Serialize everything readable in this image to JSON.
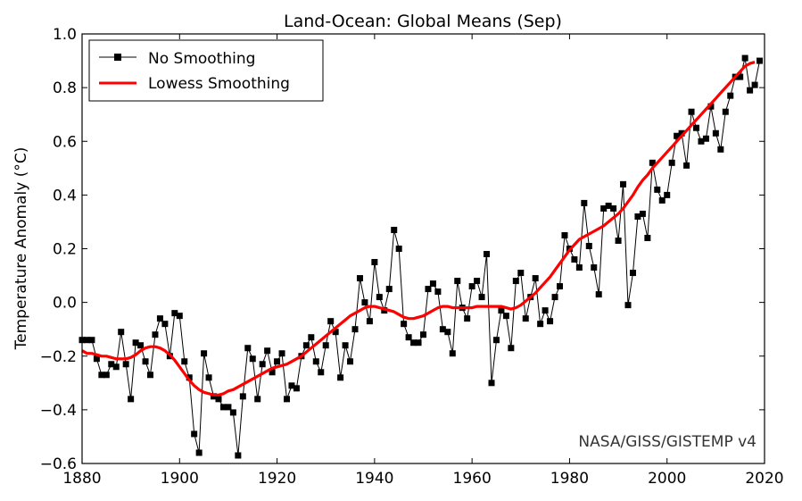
{
  "chart_data": {
    "type": "line",
    "title": "Land-Ocean: Global Means (Sep)",
    "xlabel": "",
    "ylabel": "Temperature Anomaly (°C)",
    "xlim": [
      1880,
      2020
    ],
    "ylim": [
      -0.6,
      1.0
    ],
    "xticks": [
      "1880",
      "1900",
      "1920",
      "1940",
      "1960",
      "1980",
      "2000",
      "2020"
    ],
    "yticks": [
      "−0.6",
      "−0.4",
      "−0.2",
      "0.0",
      "0.2",
      "0.4",
      "0.6",
      "0.8",
      "1.0"
    ],
    "grid": false,
    "legend_position": "top-left",
    "annotation": "NASA/GISS/GISTEMP v4",
    "series": [
      {
        "name": "No Smoothing",
        "color": "#000000",
        "marker": "square",
        "x_start": 1880,
        "values": [
          -0.14,
          -0.14,
          -0.14,
          -0.21,
          -0.27,
          -0.27,
          -0.23,
          -0.24,
          -0.11,
          -0.23,
          -0.36,
          -0.15,
          -0.16,
          -0.22,
          -0.27,
          -0.12,
          -0.06,
          -0.08,
          -0.2,
          -0.04,
          -0.05,
          -0.22,
          -0.28,
          -0.49,
          -0.56,
          -0.19,
          -0.28,
          -0.35,
          -0.36,
          -0.39,
          -0.39,
          -0.41,
          -0.57,
          -0.35,
          -0.17,
          -0.21,
          -0.36,
          -0.23,
          -0.18,
          -0.26,
          -0.22,
          -0.19,
          -0.36,
          -0.31,
          -0.32,
          -0.2,
          -0.16,
          -0.13,
          -0.22,
          -0.26,
          -0.16,
          -0.07,
          -0.11,
          -0.28,
          -0.16,
          -0.22,
          -0.1,
          0.09,
          0.0,
          -0.07,
          0.15,
          0.02,
          -0.03,
          0.05,
          0.27,
          0.2,
          -0.08,
          -0.13,
          -0.15,
          -0.15,
          -0.12,
          0.05,
          0.07,
          0.04,
          -0.1,
          -0.11,
          -0.19,
          0.08,
          -0.02,
          -0.06,
          0.06,
          0.08,
          0.02,
          0.18,
          -0.3,
          -0.14,
          -0.03,
          -0.05,
          -0.17,
          0.08,
          0.11,
          -0.06,
          0.02,
          0.09,
          -0.08,
          -0.03,
          -0.07,
          0.02,
          0.06,
          0.25,
          0.2,
          0.16,
          0.13,
          0.37,
          0.21,
          0.13,
          0.03,
          0.35,
          0.36,
          0.35,
          0.23,
          0.44,
          -0.01,
          0.11,
          0.32,
          0.33,
          0.24,
          0.52,
          0.42,
          0.38,
          0.4,
          0.52,
          0.62,
          0.63,
          0.51,
          0.71,
          0.65,
          0.6,
          0.61,
          0.73,
          0.63,
          0.57,
          0.71,
          0.77,
          0.84,
          0.84,
          0.91,
          0.79,
          0.81,
          0.9
        ]
      },
      {
        "name": "Lowess Smoothing",
        "color": "#ff0000",
        "x_start": 1880,
        "values": [
          -0.18,
          -0.19,
          -0.19,
          -0.195,
          -0.2,
          -0.2,
          -0.205,
          -0.21,
          -0.21,
          -0.21,
          -0.205,
          -0.195,
          -0.18,
          -0.17,
          -0.165,
          -0.165,
          -0.17,
          -0.18,
          -0.195,
          -0.215,
          -0.24,
          -0.265,
          -0.29,
          -0.31,
          -0.325,
          -0.335,
          -0.34,
          -0.345,
          -0.345,
          -0.34,
          -0.33,
          -0.325,
          -0.315,
          -0.305,
          -0.295,
          -0.285,
          -0.275,
          -0.265,
          -0.255,
          -0.245,
          -0.24,
          -0.235,
          -0.23,
          -0.22,
          -0.21,
          -0.2,
          -0.185,
          -0.17,
          -0.155,
          -0.14,
          -0.125,
          -0.11,
          -0.095,
          -0.08,
          -0.065,
          -0.05,
          -0.04,
          -0.03,
          -0.02,
          -0.015,
          -0.015,
          -0.02,
          -0.025,
          -0.03,
          -0.035,
          -0.045,
          -0.055,
          -0.06,
          -0.06,
          -0.055,
          -0.05,
          -0.04,
          -0.03,
          -0.02,
          -0.015,
          -0.015,
          -0.02,
          -0.02,
          -0.02,
          -0.02,
          -0.02,
          -0.015,
          -0.015,
          -0.015,
          -0.015,
          -0.015,
          -0.015,
          -0.02,
          -0.025,
          -0.02,
          -0.01,
          0.005,
          0.02,
          0.035,
          0.055,
          0.075,
          0.095,
          0.12,
          0.145,
          0.17,
          0.195,
          0.215,
          0.235,
          0.245,
          0.255,
          0.265,
          0.275,
          0.285,
          0.3,
          0.315,
          0.33,
          0.35,
          0.375,
          0.4,
          0.43,
          0.455,
          0.475,
          0.5,
          0.52,
          0.54,
          0.56,
          0.58,
          0.6,
          0.62,
          0.64,
          0.66,
          0.68,
          0.7,
          0.72,
          0.74,
          0.76,
          0.78,
          0.8,
          0.82,
          0.84,
          0.86,
          0.88,
          0.89,
          0.895
        ]
      }
    ]
  }
}
